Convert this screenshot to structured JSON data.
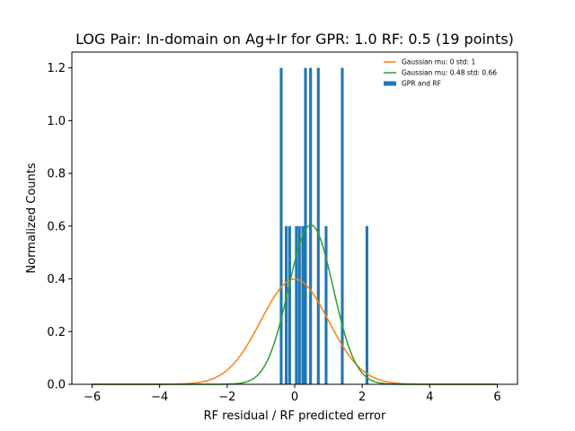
{
  "chart_data": {
    "type": "bar",
    "title": "LOG Pair: In-domain on Ag+Ir for GPR: 1.0 RF: 0.5 (19 points)",
    "xlabel": "RF residual / RF predicted error",
    "ylabel": "Normalized Counts",
    "xlim": [
      -6.6,
      6.6
    ],
    "ylim": [
      0,
      1.26
    ],
    "xticks": [
      -6,
      -4,
      -2,
      0,
      2,
      4,
      6
    ],
    "yticks": [
      0.0,
      0.2,
      0.4,
      0.6,
      0.8,
      1.0,
      1.2
    ],
    "xtick_labels": [
      "−6",
      "−4",
      "−2",
      "0",
      "2",
      "4",
      "6"
    ],
    "ytick_labels": [
      "0.0",
      "0.2",
      "0.4",
      "0.6",
      "0.8",
      "1.0",
      "1.2"
    ],
    "legend_position": "upper-right",
    "grid": false,
    "series": [
      {
        "name": "GPR and RF",
        "kind": "histogram",
        "color": "#1f77b4",
        "bin_width": 0.083,
        "bins": [
          {
            "x": -0.4,
            "value": 1.2
          },
          {
            "x": -0.25,
            "value": 0.6
          },
          {
            "x": -0.15,
            "value": 0.6
          },
          {
            "x": 0.05,
            "value": 0.6
          },
          {
            "x": 0.14,
            "value": 0.6
          },
          {
            "x": 0.24,
            "value": 0.6
          },
          {
            "x": 0.32,
            "value": 1.2
          },
          {
            "x": 0.47,
            "value": 1.2
          },
          {
            "x": 0.7,
            "value": 1.2
          },
          {
            "x": 0.93,
            "value": 0.6
          },
          {
            "x": 1.41,
            "value": 1.2
          },
          {
            "x": 2.14,
            "value": 0.6
          }
        ]
      },
      {
        "name": "Gaussian mu: 0 std: 1",
        "kind": "gaussian",
        "color": "#ff7f0e",
        "mu": 0,
        "std": 1,
        "x_range": [
          -6,
          6
        ]
      },
      {
        "name": "Gaussian mu: 0.48 std: 0.66",
        "kind": "gaussian",
        "color": "#2ca02c",
        "mu": 0.48,
        "std": 0.66,
        "x_range": [
          -6,
          6
        ]
      }
    ]
  }
}
